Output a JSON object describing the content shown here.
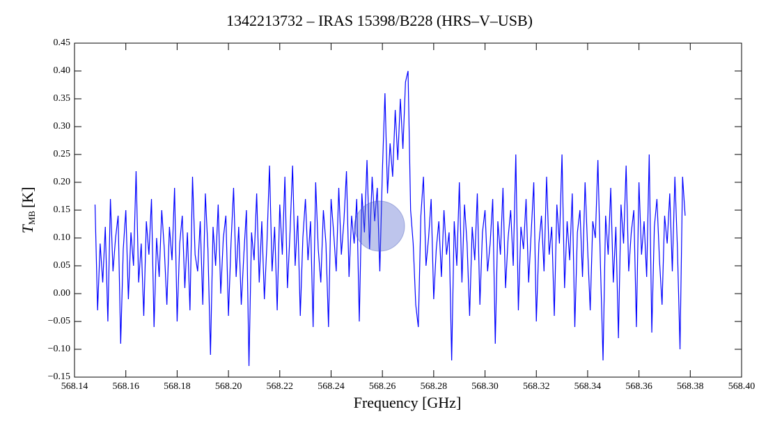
{
  "chart_data": {
    "type": "line",
    "title": "1342213732 – IRAS 15398/B228 (HRS–V–USB)",
    "xlabel": "Frequency [GHz]",
    "ylabel": {
      "symbol": "T",
      "subscript": "MB",
      "unit": "[K]"
    },
    "color": "#0000ff",
    "xlim": [
      568.14,
      568.4
    ],
    "ylim": [
      -0.15,
      0.45
    ],
    "xticks": [
      568.14,
      568.16,
      568.18,
      {
        "value": 568.2,
        "label": "568.20"
      },
      568.22,
      568.24,
      568.26,
      568.28,
      {
        "value": 568.3,
        "label": "568.30"
      },
      568.32,
      568.34,
      568.36,
      568.38,
      {
        "value": 568.4,
        "label": "568.40"
      }
    ],
    "yticks": [
      {
        "value": -0.15,
        "label": "−0.15"
      },
      {
        "value": -0.1,
        "label": "−0.10"
      },
      {
        "value": -0.05,
        "label": "−0.05"
      },
      {
        "value": 0,
        "label": "0.00"
      },
      0.05,
      {
        "value": 0.1,
        "label": "0.10"
      },
      0.15,
      {
        "value": 0.2,
        "label": "0.20"
      },
      0.25,
      {
        "value": 0.3,
        "label": "0.30"
      },
      0.35,
      {
        "value": 0.4,
        "label": "0.40"
      },
      0.45
    ],
    "x": [
      568.148,
      568.149,
      568.15,
      568.151,
      568.152,
      568.153,
      568.154,
      568.155,
      568.156,
      568.157,
      568.158,
      568.159,
      568.16,
      568.161,
      568.162,
      568.163,
      568.164,
      568.165,
      568.166,
      568.167,
      568.168,
      568.169,
      568.17,
      568.171,
      568.172,
      568.173,
      568.174,
      568.175,
      568.176,
      568.177,
      568.178,
      568.179,
      568.18,
      568.181,
      568.182,
      568.183,
      568.184,
      568.185,
      568.186,
      568.187,
      568.188,
      568.189,
      568.19,
      568.191,
      568.192,
      568.193,
      568.194,
      568.195,
      568.196,
      568.197,
      568.198,
      568.199,
      568.2,
      568.201,
      568.202,
      568.203,
      568.204,
      568.205,
      568.206,
      568.207,
      568.208,
      568.209,
      568.21,
      568.211,
      568.212,
      568.213,
      568.214,
      568.215,
      568.216,
      568.217,
      568.218,
      568.219,
      568.22,
      568.221,
      568.222,
      568.223,
      568.224,
      568.225,
      568.226,
      568.227,
      568.228,
      568.229,
      568.23,
      568.231,
      568.232,
      568.233,
      568.234,
      568.235,
      568.236,
      568.237,
      568.238,
      568.239,
      568.24,
      568.241,
      568.242,
      568.243,
      568.244,
      568.245,
      568.246,
      568.247,
      568.248,
      568.249,
      568.25,
      568.251,
      568.252,
      568.253,
      568.254,
      568.255,
      568.256,
      568.257,
      568.258,
      568.259,
      568.26,
      568.261,
      568.262,
      568.263,
      568.264,
      568.265,
      568.266,
      568.267,
      568.268,
      568.269,
      568.27,
      568.271,
      568.272,
      568.273,
      568.274,
      568.275,
      568.276,
      568.277,
      568.278,
      568.279,
      568.28,
      568.281,
      568.282,
      568.283,
      568.284,
      568.285,
      568.286,
      568.287,
      568.288,
      568.289,
      568.29,
      568.291,
      568.292,
      568.293,
      568.294,
      568.295,
      568.296,
      568.297,
      568.298,
      568.299,
      568.3,
      568.301,
      568.302,
      568.303,
      568.304,
      568.305,
      568.306,
      568.307,
      568.308,
      568.309,
      568.31,
      568.311,
      568.312,
      568.313,
      568.314,
      568.315,
      568.316,
      568.317,
      568.318,
      568.319,
      568.32,
      568.321,
      568.322,
      568.323,
      568.324,
      568.325,
      568.326,
      568.327,
      568.328,
      568.329,
      568.33,
      568.331,
      568.332,
      568.333,
      568.334,
      568.335,
      568.336,
      568.337,
      568.338,
      568.339,
      568.34,
      568.341,
      568.342,
      568.343,
      568.344,
      568.345,
      568.346,
      568.347,
      568.348,
      568.349,
      568.35,
      568.351,
      568.352,
      568.353,
      568.354,
      568.355,
      568.356,
      568.357,
      568.358,
      568.359,
      568.36,
      568.361,
      568.362,
      568.363,
      568.364,
      568.365,
      568.366,
      568.367,
      568.368,
      568.369,
      568.37,
      568.371,
      568.372,
      568.373,
      568.374,
      568.375,
      568.376,
      568.377,
      568.378
    ],
    "values": [
      0.16,
      -0.03,
      0.09,
      0.02,
      0.12,
      -0.05,
      0.17,
      0.04,
      0.1,
      0.14,
      -0.09,
      0.08,
      0.15,
      -0.01,
      0.11,
      0.05,
      0.22,
      0.02,
      0.09,
      -0.04,
      0.13,
      0.07,
      0.17,
      -0.06,
      0.1,
      0.03,
      0.15,
      0.08,
      -0.02,
      0.12,
      0.06,
      0.19,
      -0.05,
      0.09,
      0.14,
      0.01,
      0.11,
      -0.03,
      0.21,
      0.07,
      0.04,
      0.13,
      -0.02,
      0.18,
      0.08,
      -0.11,
      0.12,
      0.05,
      0.16,
      0.0,
      0.1,
      0.14,
      -0.04,
      0.09,
      0.19,
      0.03,
      0.12,
      -0.02,
      0.07,
      0.15,
      -0.13,
      0.11,
      0.06,
      0.18,
      0.02,
      0.13,
      -0.01,
      0.09,
      0.23,
      0.04,
      0.12,
      -0.03,
      0.16,
      0.07,
      0.21,
      0.01,
      0.11,
      0.23,
      0.05,
      0.14,
      -0.04,
      0.1,
      0.17,
      0.06,
      0.13,
      -0.06,
      0.2,
      0.08,
      0.02,
      0.15,
      0.09,
      -0.06,
      0.17,
      0.11,
      0.04,
      0.19,
      0.07,
      0.13,
      0.22,
      0.03,
      0.14,
      0.09,
      0.17,
      -0.05,
      0.18,
      0.11,
      0.24,
      0.08,
      0.21,
      0.13,
      0.19,
      0.04,
      0.22,
      0.36,
      0.18,
      0.27,
      0.21,
      0.33,
      0.24,
      0.35,
      0.26,
      0.38,
      0.4,
      0.15,
      0.09,
      -0.02,
      -0.06,
      0.14,
      0.21,
      0.05,
      0.1,
      0.17,
      -0.01,
      0.08,
      0.13,
      0.03,
      0.15,
      0.07,
      0.11,
      -0.12,
      0.13,
      0.05,
      0.2,
      0.02,
      0.16,
      0.09,
      -0.04,
      0.12,
      0.06,
      0.18,
      -0.02,
      0.11,
      0.15,
      0.04,
      0.09,
      0.17,
      -0.09,
      0.13,
      0.07,
      0.19,
      0.01,
      0.1,
      0.15,
      0.05,
      0.25,
      -0.03,
      0.12,
      0.08,
      0.17,
      0.02,
      0.11,
      0.2,
      -0.05,
      0.09,
      0.14,
      0.04,
      0.21,
      0.07,
      0.12,
      -0.04,
      0.16,
      0.09,
      0.25,
      0.01,
      0.13,
      0.06,
      0.18,
      -0.06,
      0.11,
      0.15,
      0.03,
      0.2,
      0.08,
      -0.03,
      0.13,
      0.1,
      0.24,
      0.05,
      -0.12,
      0.14,
      0.07,
      0.19,
      0.02,
      0.12,
      -0.08,
      0.16,
      0.09,
      0.23,
      0.04,
      0.11,
      0.15,
      -0.06,
      0.2,
      0.07,
      0.13,
      0.03,
      0.25,
      -0.07,
      0.12,
      0.17,
      0.06,
      -0.02,
      0.14,
      0.09,
      0.18,
      0.04,
      0.21,
      0.08,
      -0.1,
      0.21,
      0.14
    ]
  }
}
